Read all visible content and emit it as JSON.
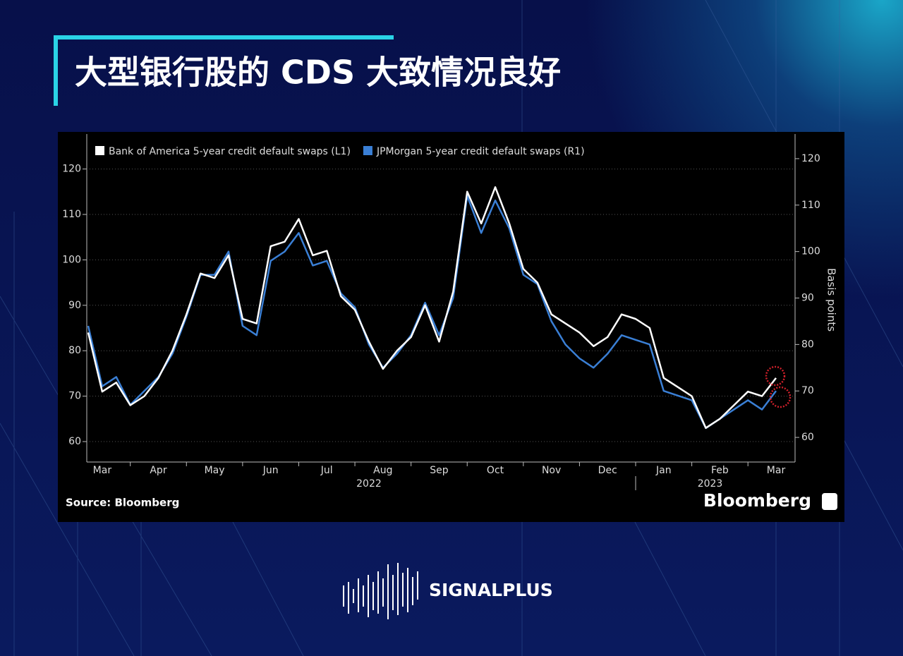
{
  "slide_title": "大型银行股的 CDS 大致情况良好",
  "chart_data": {
    "type": "line",
    "categories": [
      null,
      "Mar",
      null,
      null,
      null,
      "Apr",
      null,
      null,
      null,
      "May",
      null,
      null,
      null,
      "Jun",
      null,
      null,
      null,
      "Jul",
      null,
      null,
      null,
      "Aug",
      null,
      null,
      null,
      "Sep",
      null,
      null,
      null,
      "Oct",
      null,
      null,
      null,
      "Nov",
      null,
      null,
      null,
      "Dec",
      null,
      null,
      null,
      "Jan",
      null,
      null,
      null,
      "Feb",
      null,
      null,
      null,
      "Mar"
    ],
    "years": [
      "2022",
      "2023"
    ],
    "series": [
      {
        "name": "Bank of America 5-year credit default swaps (L1)",
        "color": "#ffffff",
        "axis": "y",
        "values": [
          84,
          71,
          73,
          68,
          70,
          74,
          80,
          88,
          97,
          96,
          101,
          87,
          86,
          103,
          104,
          109,
          101,
          102,
          92,
          89,
          82,
          76,
          80,
          83,
          90,
          82,
          93,
          115,
          108,
          116,
          108,
          98,
          95,
          88,
          86,
          84,
          81,
          83,
          88,
          87,
          85,
          74,
          72,
          70,
          63,
          65,
          68,
          71,
          70,
          74
        ]
      },
      {
        "name": "JPMorgan 5-year credit default swaps (R1)",
        "color": "#3a7fd5",
        "axis": "y2",
        "values": [
          84,
          71,
          73,
          67,
          70,
          73,
          78,
          86,
          95,
          95,
          100,
          84,
          82,
          98,
          100,
          104,
          97,
          98,
          91,
          88,
          80,
          75,
          78,
          82,
          89,
          82,
          90,
          112,
          104,
          111,
          105,
          95,
          93,
          85,
          80,
          77,
          75,
          78,
          82,
          81,
          80,
          70,
          69,
          68,
          62,
          64,
          66,
          68,
          66,
          70
        ]
      }
    ],
    "ylim": [
      55.5,
      127.7
    ],
    "yticks": [
      60,
      70,
      80,
      90,
      100,
      110,
      120
    ],
    "y2lim": [
      54.7,
      125.3
    ],
    "y2ticks": [
      60,
      70,
      80,
      90,
      100,
      110,
      120
    ],
    "y2label": "Basis points",
    "grid": true,
    "source": "Source: Bloomberg",
    "brand": "Bloomberg"
  },
  "footer": {
    "logo": "SIGNALPLUS"
  }
}
